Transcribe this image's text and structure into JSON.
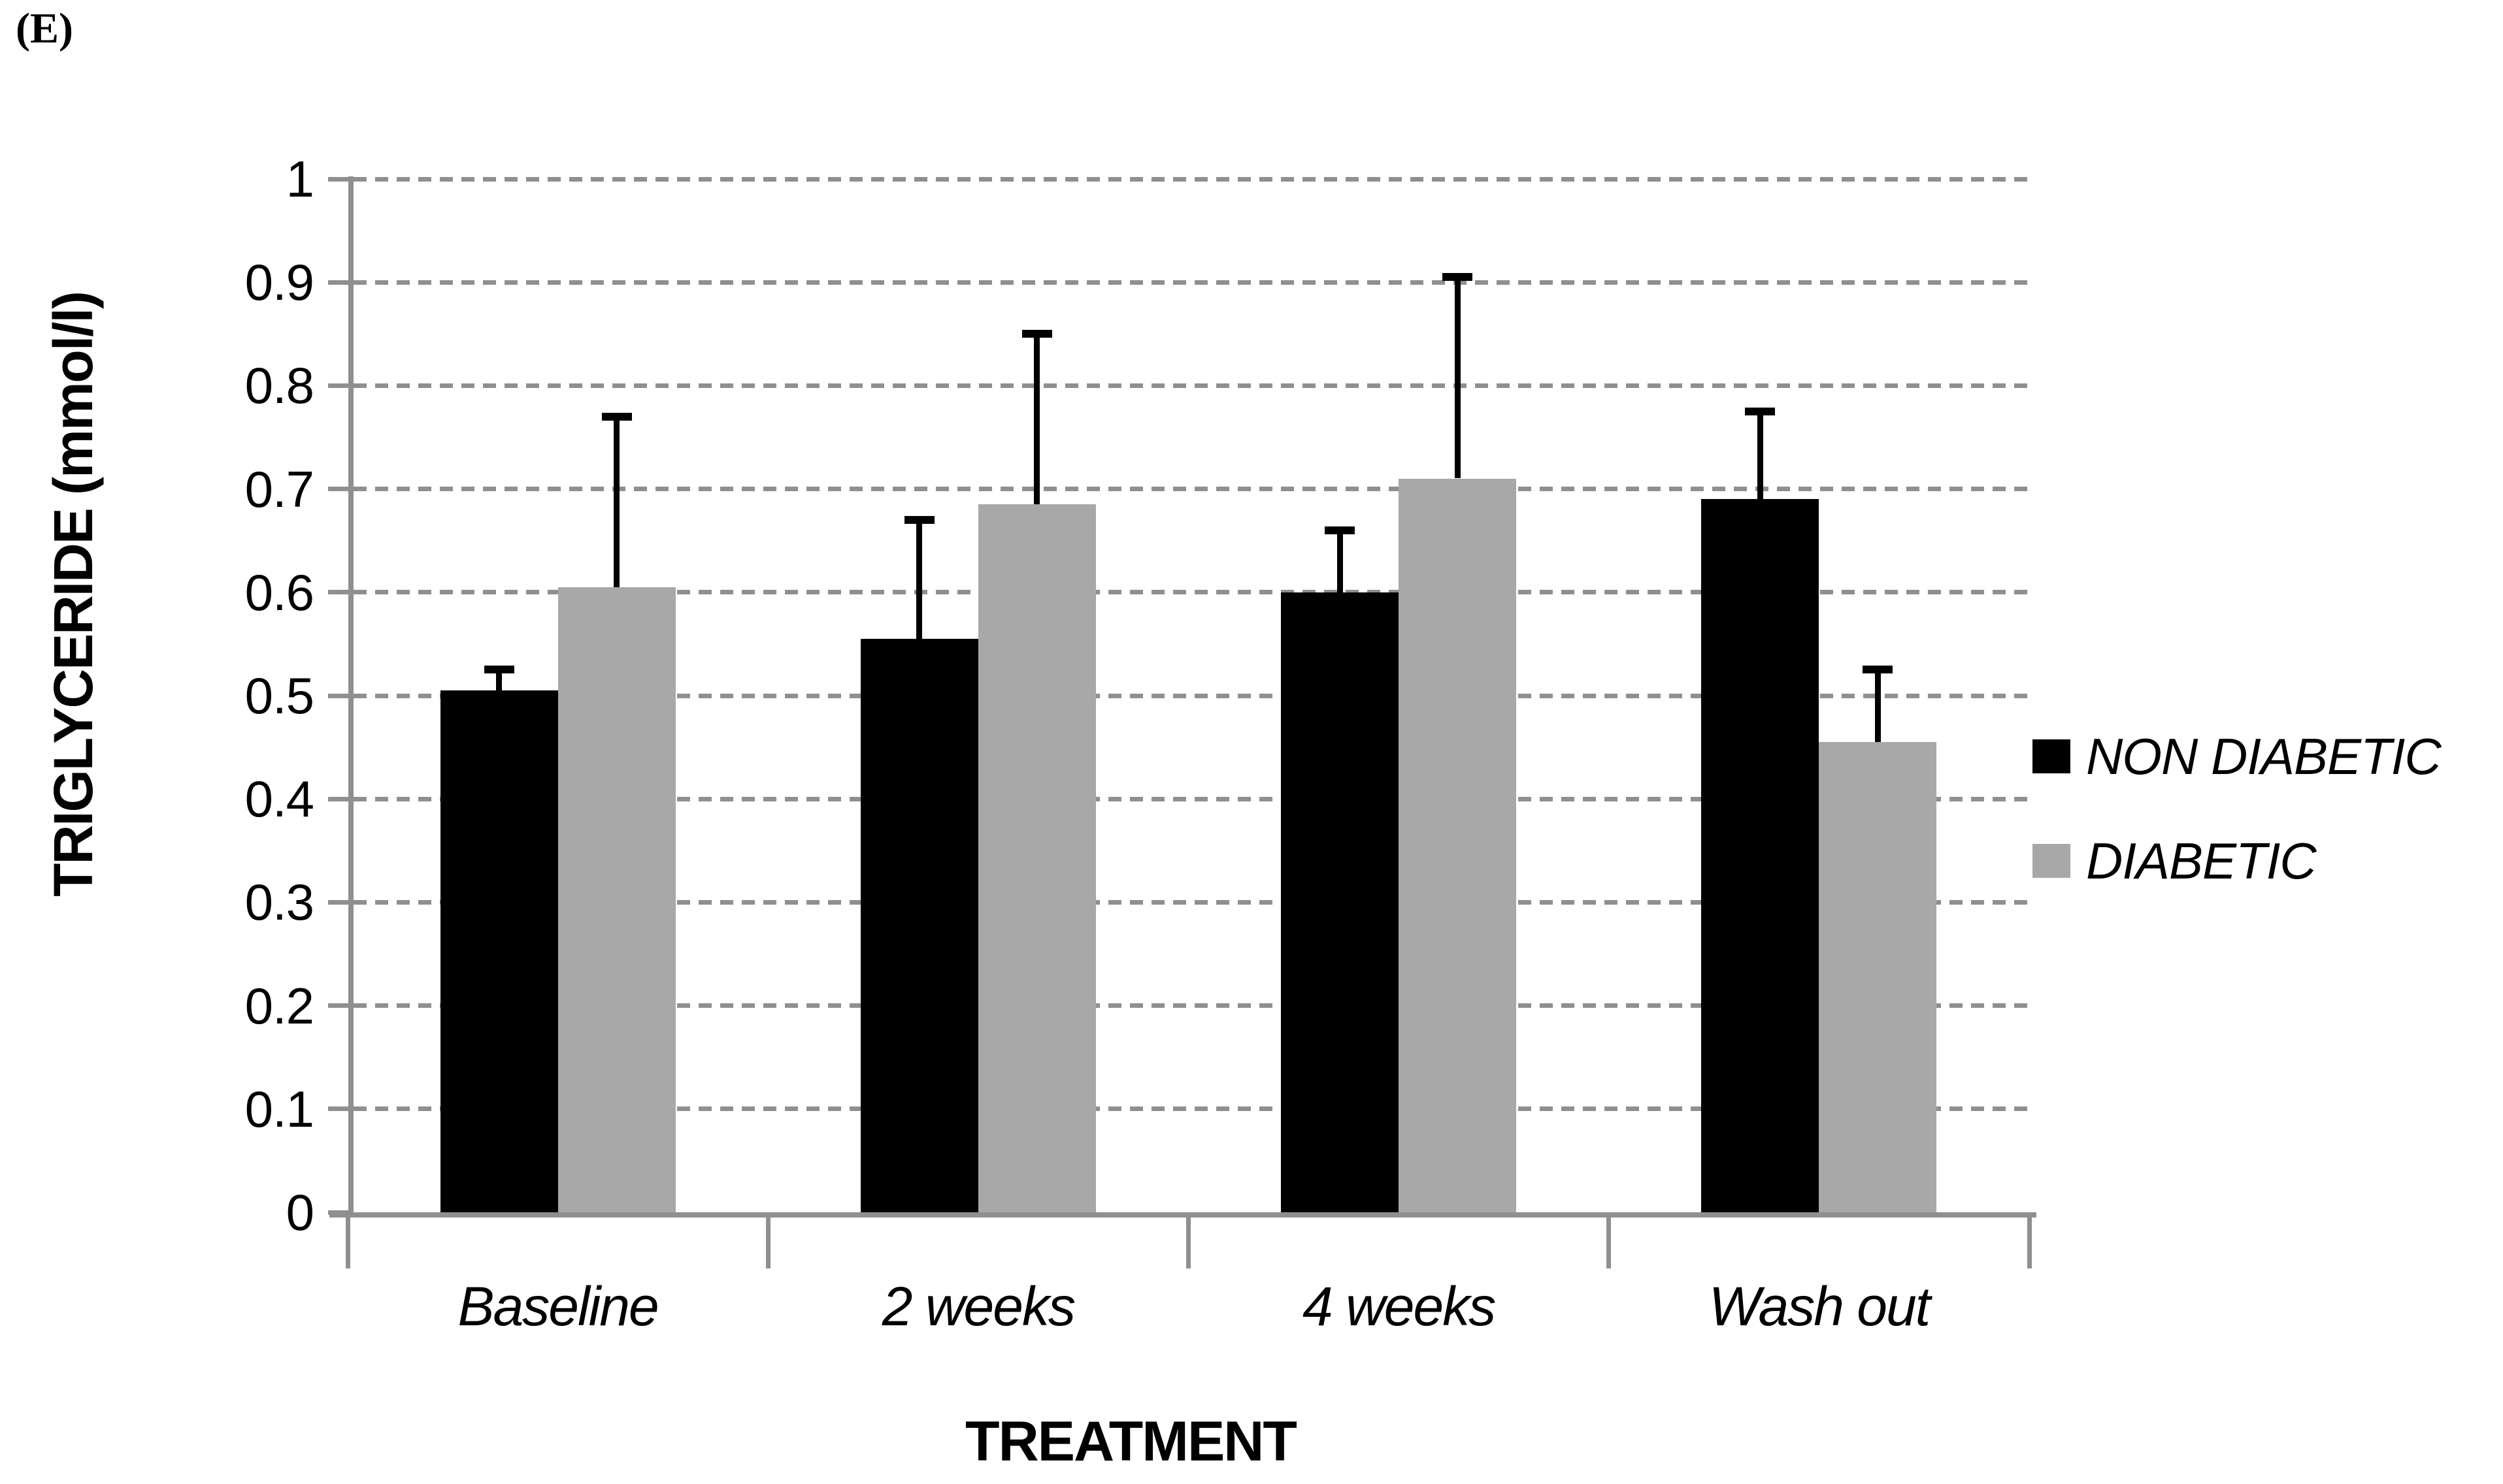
{
  "panel_label": "(E)",
  "colors": {
    "axis": "#8f8f8f",
    "gridline": "#8f8f8f",
    "bar_black": "#000000",
    "bar_gray": "#a8a8a8",
    "error_bar": "#000000",
    "background": "#ffffff"
  },
  "legend": {
    "position": "right",
    "items": [
      {
        "label": "NON DIABETIC",
        "color": "#000000"
      },
      {
        "label": "DIABETIC",
        "color": "#a8a8a8"
      }
    ]
  },
  "chart_data": {
    "type": "bar",
    "title": "",
    "categories": [
      "Baseline",
      "2 weeks",
      "4 weeks",
      "Wash out"
    ],
    "series": [
      {
        "name": "NON DIABETIC",
        "color": "#000000",
        "values": [
          0.505,
          0.555,
          0.6,
          0.69
        ],
        "errors_plus": [
          0.02,
          0.115,
          0.06,
          0.085
        ]
      },
      {
        "name": "DIABETIC",
        "color": "#a8a8a8",
        "values": [
          0.605,
          0.685,
          0.71,
          0.455
        ],
        "errors_plus": [
          0.165,
          0.165,
          0.195,
          0.07
        ]
      }
    ],
    "xlabel": "TREATMENT",
    "ylabel": "TRIGLYCERIDE (mmol/l)",
    "ylim": [
      0,
      1
    ],
    "ytick_step": 0.1,
    "ytick_labels": [
      "0",
      "0.1",
      "0.2",
      "0.3",
      "0.4",
      "0.5",
      "0.6",
      "0.7",
      "0.8",
      "0.9",
      "1"
    ],
    "grid": "dashed-horizontal",
    "error_bars": "plus-only",
    "legend_position": "right"
  }
}
